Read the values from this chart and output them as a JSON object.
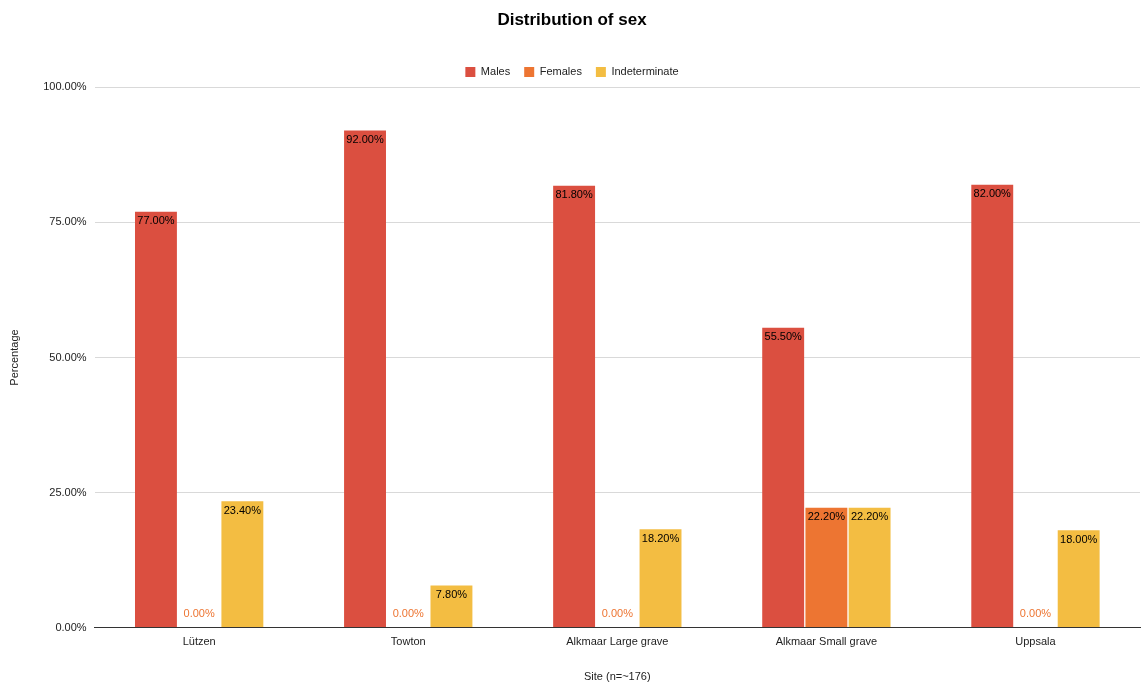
{
  "chart_data": {
    "type": "bar",
    "title": "Distribution of sex",
    "xlabel": "Site (n=~176)",
    "ylabel": "Percentage",
    "categories": [
      "Lützen",
      "Towton",
      "Alkmaar Large grave",
      "Alkmaar Small grave",
      "Uppsala"
    ],
    "series": [
      {
        "name": "Males",
        "color": "#db4f40",
        "values": [
          77.0,
          92.0,
          81.8,
          55.5,
          82.0
        ],
        "value_labels": [
          "77.00%",
          "92.00%",
          "81.80%",
          "55.50%",
          "82.00%"
        ]
      },
      {
        "name": "Females",
        "color": "#ed7532",
        "values": [
          0,
          0,
          0,
          22.2,
          0
        ],
        "value_labels": [
          "0.00%",
          "0.00%",
          "0.00%",
          "22.20%",
          "0.00%"
        ]
      },
      {
        "name": "Indeterminate",
        "color": "#f3bd42",
        "values": [
          23.4,
          7.8,
          18.2,
          22.2,
          18.0
        ],
        "value_labels": [
          "23.40%",
          "7.80%",
          "18.20%",
          "22.20%",
          "18.00%"
        ]
      }
    ],
    "ylim": [
      0,
      100
    ],
    "yticks": [
      {
        "value": 0,
        "label": "0.00%"
      },
      {
        "value": 25,
        "label": "25.00%"
      },
      {
        "value": 50,
        "label": "50.00%"
      },
      {
        "value": 75,
        "label": "75.00%"
      },
      {
        "value": 100,
        "label": "100.00%"
      }
    ],
    "grid": "y",
    "legend": "top"
  }
}
